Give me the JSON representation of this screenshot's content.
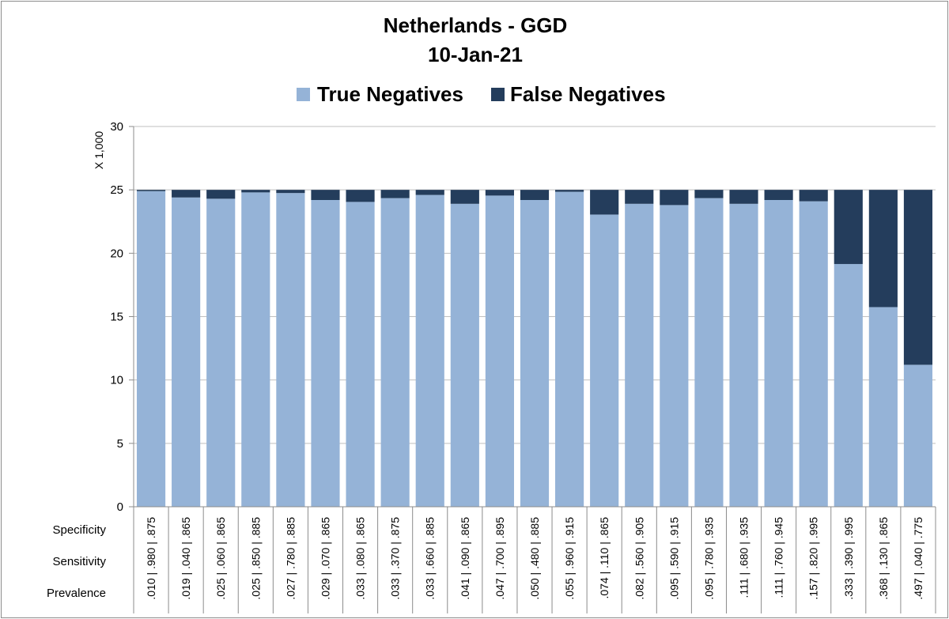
{
  "chart_data": {
    "type": "bar",
    "stacked": true,
    "title": "Netherlands - GGD",
    "subtitle": "10-Jan-21",
    "ylabel": "X 1,000",
    "ylim": [
      0,
      30
    ],
    "yticks": [
      0,
      5,
      10,
      15,
      20,
      25,
      30
    ],
    "grid": true,
    "legend_position": "top",
    "row_labels": [
      "Specificity",
      "Sensitivity",
      "Prevalence"
    ],
    "categories": [
      ".010 | .980 | .875",
      ".019 | .040 | .865",
      ".025 | .060 | .865",
      ".025 | .850 | .885",
      ".027 | .780 | .885",
      ".029 | .070 | .865",
      ".033 | .080 | .865",
      ".033 | .370 | .875",
      ".033 | .660 | .885",
      ".041 | .090 | .865",
      ".047 | .700 | .895",
      ".050 | .480 | .885",
      ".055 | .960 | .915",
      ".074 | .110 | .865",
      ".082 | .560 | .905",
      ".095 | .590 | .915",
      ".095 | .780 | .935",
      ".111 | .680 | .935",
      ".111 | .760 | .945",
      ".157 | .820 | .995",
      ".333 | .390 | .995",
      ".368 | .130 | .865",
      ".497 | .040 | .775"
    ],
    "series": [
      {
        "name": "True Negatives",
        "color": "#95b3d7",
        "values": [
          24.9,
          24.4,
          24.3,
          24.8,
          24.75,
          24.2,
          24.05,
          24.35,
          24.6,
          23.9,
          24.55,
          24.2,
          24.85,
          23.05,
          23.9,
          23.8,
          24.35,
          23.9,
          24.2,
          24.1,
          19.15,
          15.75,
          11.2
        ]
      },
      {
        "name": "False Negatives",
        "color": "#243d5c",
        "values": [
          0.1,
          0.6,
          0.7,
          0.2,
          0.25,
          0.8,
          0.95,
          0.65,
          0.4,
          1.1,
          0.45,
          0.8,
          0.15,
          1.95,
          1.1,
          1.2,
          0.65,
          1.1,
          0.8,
          0.9,
          5.85,
          9.25,
          13.8
        ]
      }
    ]
  }
}
